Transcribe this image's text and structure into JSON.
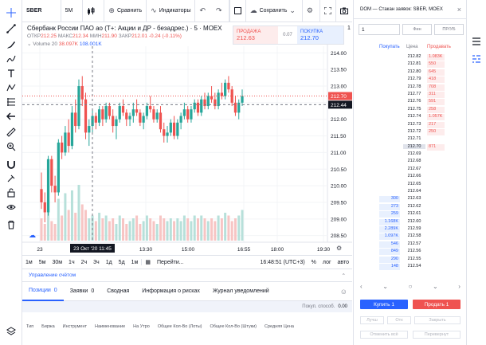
{
  "toolbar": {
    "symbol": "SBER",
    "interval": "5M",
    "compare_label": "Сравнить",
    "indicators_label": "Индикаторы",
    "save_label": "Сохранить"
  },
  "legend": {
    "title": "Сбербанк России ПАО ао (Т+: Акции и ДР - безадрес.)",
    "interval": "5",
    "exchange": "MOEX",
    "ohlc": {
      "open_label": "ОТКР",
      "open": "212.25",
      "high_label": "МАКС",
      "high": "212.34",
      "low_label": "МИН",
      "low": "211.90",
      "close_label": "ЗАКР",
      "close": "212.01",
      "change": "-0.24 (-0.11%)"
    },
    "volume": {
      "label": "Volume 20",
      "v1": "38.097K",
      "v2": "108.001K"
    }
  },
  "trade": {
    "sell_label": "ПРОДАЖА",
    "sell_price": "212.63",
    "spread": "0.07",
    "buy_label": "ПОКУПКА",
    "buy_price": "212.70",
    "qty": "1"
  },
  "colors": {
    "up": "#26a69a",
    "down": "#ef5350",
    "accent": "#2962ff"
  },
  "chart_data": {
    "type": "candlestick",
    "y_ticks": [
      "214.00",
      "213.50",
      "213.00",
      "212.50",
      "212.00",
      "211.50",
      "211.00",
      "210.50",
      "210.00",
      "209.50",
      "209.00",
      "208.50"
    ],
    "ylim": [
      208.3,
      214.2
    ],
    "x_ticks": [
      "23",
      "13:30",
      "15:00",
      "16:55",
      "18:00",
      "19:30"
    ],
    "crosshair_x_label": "23 Окт '20 11:45",
    "crosshair_y_label": "212.44",
    "last_price_label": "212.70",
    "candles": [
      [
        209.9,
        210.4,
        209.3,
        209.5
      ],
      [
        209.5,
        209.8,
        208.9,
        209.2
      ],
      [
        209.2,
        210.9,
        209.1,
        210.8
      ],
      [
        210.8,
        210.9,
        209.8,
        210.0
      ],
      [
        210.0,
        210.3,
        209.5,
        209.8
      ],
      [
        209.8,
        211.4,
        209.7,
        211.3
      ],
      [
        211.3,
        211.5,
        210.8,
        211.0
      ],
      [
        211.0,
        211.8,
        210.9,
        211.6
      ],
      [
        211.6,
        212.0,
        211.0,
        211.2
      ],
      [
        211.2,
        212.4,
        211.1,
        212.2
      ],
      [
        212.2,
        212.6,
        211.6,
        211.8
      ],
      [
        211.8,
        213.2,
        211.7,
        213.0
      ],
      [
        213.0,
        213.3,
        212.4,
        212.6
      ],
      [
        212.6,
        212.8,
        211.4,
        211.6
      ],
      [
        211.6,
        212.0,
        211.2,
        211.8
      ],
      [
        211.8,
        212.3,
        211.6,
        212.1
      ],
      [
        212.1,
        212.2,
        211.7,
        211.9
      ],
      [
        211.9,
        212.4,
        211.8,
        212.3
      ],
      [
        212.3,
        212.4,
        211.8,
        212.0
      ],
      [
        212.0,
        212.5,
        211.9,
        212.4
      ],
      [
        212.4,
        212.5,
        212.0,
        212.1
      ],
      [
        212.1,
        212.3,
        211.6,
        211.8
      ],
      [
        211.8,
        212.1,
        211.4,
        212.0
      ],
      [
        212.0,
        212.5,
        211.9,
        212.4
      ],
      [
        212.4,
        212.6,
        212.1,
        212.2
      ],
      [
        212.2,
        212.3,
        211.8,
        212.0
      ],
      [
        212.0,
        212.2,
        211.8,
        212.1
      ],
      [
        212.1,
        212.5,
        211.9,
        212.3
      ],
      [
        212.3,
        212.6,
        212.1,
        212.2
      ],
      [
        212.2,
        212.3,
        211.8,
        211.9
      ],
      [
        211.9,
        212.2,
        211.7,
        212.1
      ],
      [
        212.1,
        212.5,
        212.0,
        212.4
      ],
      [
        212.4,
        212.7,
        212.2,
        212.3
      ],
      [
        212.3,
        212.4,
        211.9,
        212.0
      ],
      [
        212.0,
        212.3,
        211.9,
        212.2
      ],
      [
        212.2,
        212.4,
        211.6,
        211.7
      ],
      [
        211.7,
        211.9,
        211.3,
        211.5
      ],
      [
        211.5,
        211.8,
        211.3,
        211.6
      ],
      [
        211.6,
        212.0,
        211.5,
        211.9
      ],
      [
        211.9,
        212.1,
        211.4,
        211.5
      ],
      [
        211.5,
        212.0,
        211.4,
        211.9
      ],
      [
        211.9,
        212.2,
        211.7,
        212.1
      ],
      [
        212.1,
        212.5,
        212.0,
        212.3
      ],
      [
        212.3,
        212.4,
        211.9,
        212.0
      ],
      [
        212.0,
        212.4,
        211.9,
        212.3
      ],
      [
        212.3,
        212.6,
        212.2,
        212.5
      ],
      [
        212.5,
        212.6,
        212.1,
        212.2
      ],
      [
        212.2,
        212.7,
        212.1,
        212.6
      ],
      [
        212.6,
        212.8,
        212.3,
        212.4
      ],
      [
        212.4,
        212.8,
        212.3,
        212.7
      ],
      [
        212.7,
        213.0,
        212.5,
        212.6
      ],
      [
        212.6,
        212.8,
        212.3,
        212.4
      ],
      [
        212.4,
        212.9,
        212.3,
        212.8
      ],
      [
        212.8,
        213.1,
        212.6,
        212.7
      ],
      [
        212.7,
        213.2,
        212.6,
        213.1
      ],
      [
        213.1,
        213.3,
        212.8,
        212.9
      ],
      [
        212.9,
        213.0,
        212.4,
        212.5
      ],
      [
        212.5,
        212.7,
        212.1,
        212.2
      ],
      [
        212.2,
        212.6,
        212.0,
        212.5
      ],
      [
        212.5,
        212.9,
        212.4,
        212.7
      ]
    ],
    "volumes": [
      40,
      30,
      70,
      35,
      30,
      75,
      45,
      85,
      55,
      90,
      50,
      100,
      65,
      55,
      40,
      45,
      35,
      50,
      40,
      45,
      35,
      40,
      30,
      45,
      40,
      30,
      35,
      40,
      45,
      30,
      35,
      45,
      40,
      35,
      30,
      45,
      40,
      35,
      40,
      35,
      40,
      35,
      45,
      40,
      35,
      45,
      40,
      45,
      40,
      35,
      40,
      35,
      45,
      40,
      50,
      45,
      35,
      40,
      45,
      55
    ]
  },
  "range_bar": {
    "ranges": [
      "1м",
      "5м",
      "30м",
      "1ч",
      "2ч",
      "3ч",
      "1д",
      "5д",
      "1м"
    ],
    "goto_label": "Перейти...",
    "clock": "16:48:51 (UTC+3)",
    "percent_label": "%",
    "log_label": "лог",
    "auto_label": "авто"
  },
  "account": {
    "header": "Управление счётом",
    "tabs": [
      {
        "label": "Позиции",
        "count": "0"
      },
      {
        "label": "Заявки",
        "count": "0"
      },
      {
        "label": "Сводная",
        "count": ""
      },
      {
        "label": "Информация о рисках",
        "count": ""
      },
      {
        "label": "Журнал уведомлений",
        "count": ""
      }
    ],
    "buying_power": "Покуп. способ.",
    "buying_value": "0.00",
    "columns": [
      "Тип",
      "Биржа",
      "Инструмент",
      "Наименование",
      "На Утро",
      "Общее Кол-Во (Лоты)",
      "Общее Кол-Во (Штуки)",
      "Средняя Цена"
    ]
  },
  "dom": {
    "title": "DOM — Стакан заявок: SBER, MOEX",
    "qty": "1",
    "btn1": "Фин",
    "btn2": "ПР/УБ",
    "bid_label": "Покупать",
    "price_label": "Цена",
    "ask_label": "Продавать",
    "rows": [
      {
        "price": "212.82",
        "ask": "1.083K",
        "bid": ""
      },
      {
        "price": "212.81",
        "ask": "550",
        "bid": ""
      },
      {
        "price": "212.80",
        "ask": "645",
        "bid": ""
      },
      {
        "price": "212.79",
        "ask": "418",
        "bid": ""
      },
      {
        "price": "212.78",
        "ask": "708",
        "bid": ""
      },
      {
        "price": "212.77",
        "ask": "311",
        "bid": ""
      },
      {
        "price": "212.76",
        "ask": "591",
        "bid": ""
      },
      {
        "price": "212.75",
        "ask": "258",
        "bid": ""
      },
      {
        "price": "212.74",
        "ask": "1.057K",
        "bid": ""
      },
      {
        "price": "212.73",
        "ask": "217",
        "bid": ""
      },
      {
        "price": "212.72",
        "ask": "250",
        "bid": ""
      },
      {
        "price": "212.71",
        "ask": "",
        "bid": ""
      },
      {
        "price": "212.70",
        "ask": "871",
        "bid": ""
      },
      {
        "price": "212.69",
        "ask": "",
        "bid": ""
      },
      {
        "price": "212.68",
        "ask": "",
        "bid": ""
      },
      {
        "price": "212.67",
        "ask": "",
        "bid": ""
      },
      {
        "price": "212.66",
        "ask": "",
        "bid": ""
      },
      {
        "price": "212.65",
        "ask": "",
        "bid": ""
      },
      {
        "price": "212.64",
        "ask": "",
        "bid": ""
      },
      {
        "price": "212.63",
        "ask": "",
        "bid": "300"
      },
      {
        "price": "212.62",
        "ask": "",
        "bid": "273"
      },
      {
        "price": "212.61",
        "ask": "",
        "bid": "259"
      },
      {
        "price": "212.60",
        "ask": "",
        "bid": "1.168K"
      },
      {
        "price": "212.59",
        "ask": "",
        "bid": "2.289K"
      },
      {
        "price": "212.58",
        "ask": "",
        "bid": "1.097K"
      },
      {
        "price": "212.57",
        "ask": "",
        "bid": "546"
      },
      {
        "price": "212.56",
        "ask": "",
        "bid": "849"
      },
      {
        "price": "212.55",
        "ask": "",
        "bid": "290"
      },
      {
        "price": "212.54",
        "ask": "",
        "bid": "148"
      }
    ],
    "buy_btn": "Купить 1",
    "sell_btn": "Продать 1",
    "btn_a": "Лучш",
    "btn_b": "Отк",
    "close_btn": "Закрыть",
    "cancel_all": "Отменить всё",
    "reverse": "Перевернут"
  }
}
